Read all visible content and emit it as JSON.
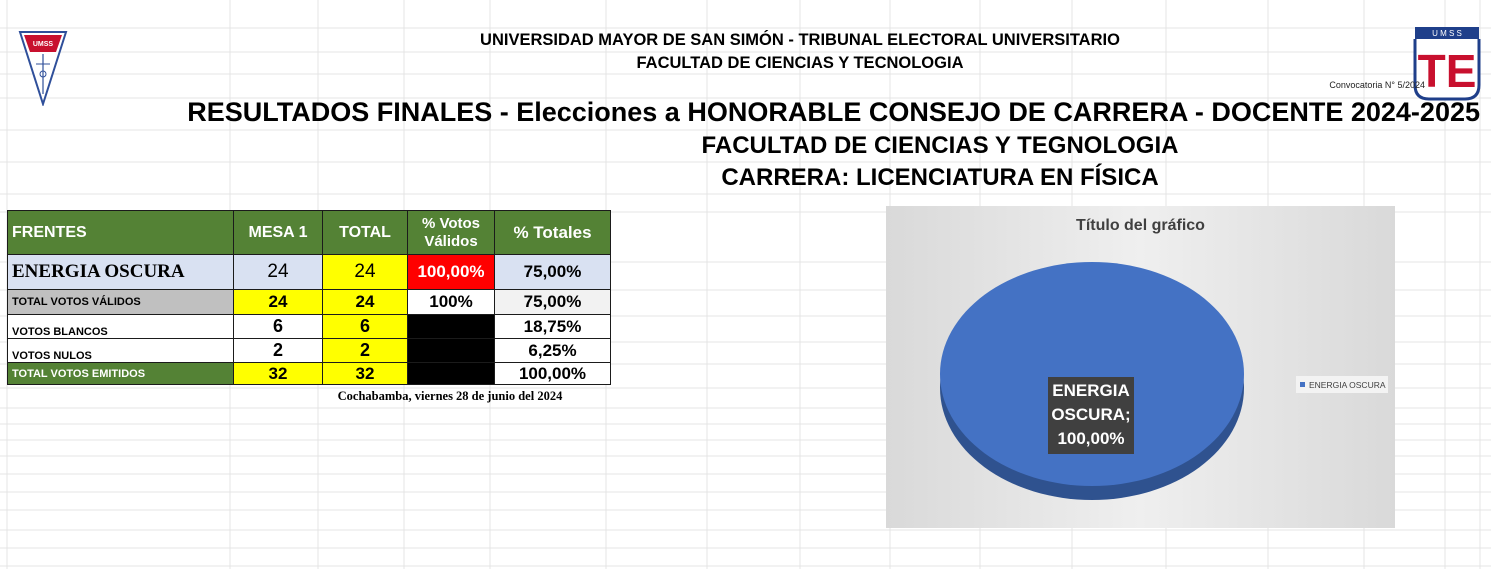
{
  "header": {
    "line1": "UNIVERSIDAD MAYOR DE SAN SIMÓN - TRIBUNAL ELECTORAL UNIVERSITARIO",
    "line2": "FACULTAD DE CIENCIAS Y TECNOLOGIA",
    "convocatoria": "Convocatoria N° 5/2024",
    "title": "RESULTADOS FINALES - Elecciones a HONORABLE CONSEJO DE CARRERA - DOCENTE 2024-2025",
    "subtitle1": "FACULTAD DE CIENCIAS Y TEGNOLOGIA",
    "subtitle2": "CARRERA: LICENCIATURA EN FÍSICA",
    "logo_left_text": "UMSS",
    "logo_right_text": "TE",
    "logo_right_top": "U M S S"
  },
  "table": {
    "headers": {
      "frentes": "FRENTES",
      "mesa1": "MESA 1",
      "total": "TOTAL",
      "validos": "% Votos Válidos",
      "totales": "% Totales"
    },
    "rows": [
      {
        "label": "ENERGIA OSCURA",
        "mesa1": "24",
        "total": "24",
        "validos": "100,00%",
        "totales": "75,00%"
      },
      {
        "label": "TOTAL VOTOS VÁLIDOS",
        "mesa1": "24",
        "total": "24",
        "validos": "100%",
        "totales": "75,00%"
      },
      {
        "label": "VOTOS BLANCOS",
        "mesa1": "6",
        "total": "6",
        "validos": "",
        "totales": "18,75%"
      },
      {
        "label": "VOTOS NULOS",
        "mesa1": "2",
        "total": "2",
        "validos": "",
        "totales": "6,25%"
      },
      {
        "label": "TOTAL VOTOS EMITIDOS",
        "mesa1": "32",
        "total": "32",
        "validos": "",
        "totales": "100,00%"
      }
    ]
  },
  "footer": {
    "date": "Cochabamba, viernes 28 de junio del 2024"
  },
  "chart_data": {
    "type": "pie",
    "title": "Título del gráfico",
    "categories": [
      "ENERGIA OSCURA"
    ],
    "values": [
      100
    ],
    "data_label_line1": "ENERGIA",
    "data_label_line2": "OSCURA;",
    "data_label_line3": "100,00%",
    "legend_label": "ENERGIA OSCURA",
    "legend_position": "right",
    "colors": [
      "#4472c4"
    ]
  },
  "colors": {
    "header_green": "#548235",
    "highlight_yellow": "#ffff00",
    "highlight_red": "#ff0000",
    "row_blue": "#d9e1f2"
  }
}
